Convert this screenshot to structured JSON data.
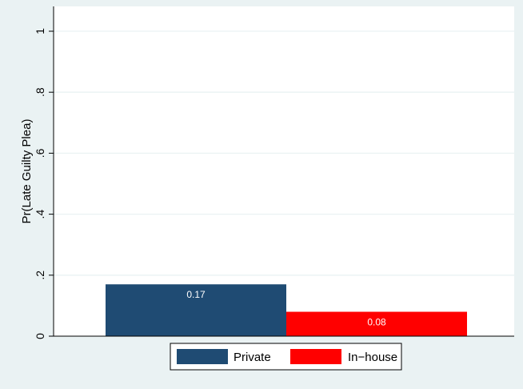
{
  "chart_data": {
    "type": "bar",
    "title": "",
    "xlabel": "",
    "ylabel": "Pr(Late Guilty Plea)",
    "ylim": [
      0,
      1
    ],
    "yticks": [
      {
        "value": 0,
        "label": "0"
      },
      {
        "value": 0.2,
        "label": ".2"
      },
      {
        "value": 0.4,
        "label": ".4"
      },
      {
        "value": 0.6,
        "label": ".6"
      },
      {
        "value": 0.8,
        "label": ".8"
      },
      {
        "value": 1,
        "label": "1"
      }
    ],
    "grid": true,
    "legend_position": "bottom",
    "series": [
      {
        "name": "Private",
        "value": 0.17,
        "data_label": "0.17",
        "color": "#1f4b73"
      },
      {
        "name": "In−house",
        "value": 0.08,
        "data_label": "0.08",
        "color": "#ff0000"
      }
    ]
  },
  "colors": {
    "background": "#eaf2f3",
    "plot_background": "#ffffff",
    "gridline": "#eaf2f3",
    "data_label_text": "#ffffff"
  }
}
